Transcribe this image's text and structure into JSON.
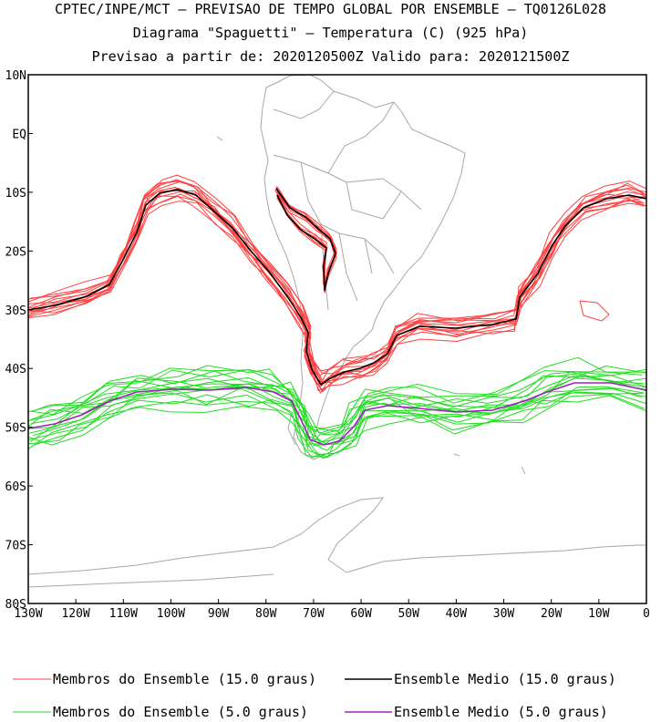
{
  "header": {
    "line1": "CPTEC/INPE/MCT — PREVISAO DE TEMPO GLOBAL POR ENSEMBLE — TQ0126L028",
    "line2": "Diagrama \"Spaguetti\" — Temperatura (C) (925 hPa)",
    "line3": "Previsao a partir de: 2020120500Z  Valido para: 2020121500Z"
  },
  "map": {
    "lat_labels": [
      "10N",
      "EQ",
      "10S",
      "20S",
      "30S",
      "40S",
      "50S",
      "60S",
      "70S",
      "80S"
    ],
    "lon_labels": [
      "130W",
      "120W",
      "110W",
      "100W",
      "90W",
      "80W",
      "70W",
      "60W",
      "50W",
      "40W",
      "30W",
      "20W",
      "10W",
      "0"
    ],
    "lat_range": [
      -80,
      10
    ],
    "lon_range": [
      -130,
      0
    ]
  },
  "legend": {
    "members_15": "Membros do Ensemble (15.0 graus)",
    "mean_15": "Ensemble Medio (15.0 graus)",
    "members_5": "Membros do Ensemble (5.0 graus)",
    "mean_5": "Ensemble Medio (5.0 graus)",
    "colors": {
      "members_15": "#ff4040",
      "mean_15": "#000000",
      "members_5": "#22dd22",
      "mean_5": "#a020c0",
      "coast": "#a8a8a8"
    }
  }
}
